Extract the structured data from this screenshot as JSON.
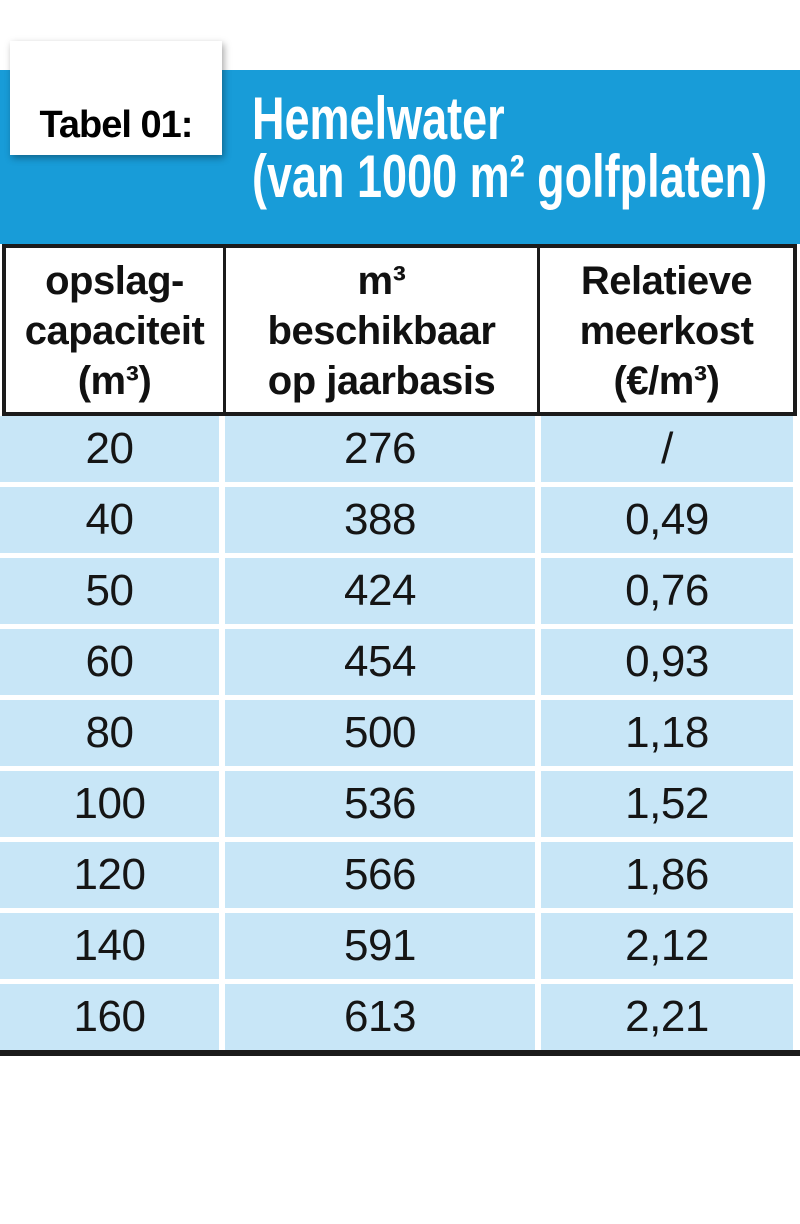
{
  "colors": {
    "banner_blue": "#189cd8",
    "row_blue": "#c8e6f7",
    "border_dark": "#1b1b1b",
    "header_text": "#111111",
    "cell_text": "#151515",
    "banner_text": "#ffffff"
  },
  "header": {
    "tab_label": "Tabel 01:",
    "title_line1": "Hemelwater",
    "title_line2": "(van 1000 m² golfplaten)"
  },
  "chart_data": {
    "type": "table",
    "tab_label": "Tabel 01:",
    "title": "Hemelwater (van 1000 m² golfplaten)",
    "columns": [
      {
        "full": "opslag-capaciteit (m³)",
        "lines": [
          "opslag-",
          "capaciteit",
          "(m³)"
        ]
      },
      {
        "full": "m³ beschikbaar op jaarbasis",
        "lines": [
          "m³",
          "beschikbaar",
          "op jaarbasis"
        ]
      },
      {
        "full": "Relatieve meerkost (€/m³)",
        "lines": [
          "Relatieve",
          "meerkost",
          "(€/m³)"
        ]
      }
    ],
    "rows": [
      [
        "20",
        "276",
        "/"
      ],
      [
        "40",
        "388",
        "0,49"
      ],
      [
        "50",
        "424",
        "0,76"
      ],
      [
        "60",
        "454",
        "0,93"
      ],
      [
        "80",
        "500",
        "1,18"
      ],
      [
        "100",
        "536",
        "1,52"
      ],
      [
        "120",
        "566",
        "1,86"
      ],
      [
        "140",
        "591",
        "2,12"
      ],
      [
        "160",
        "613",
        "2,21"
      ]
    ]
  }
}
